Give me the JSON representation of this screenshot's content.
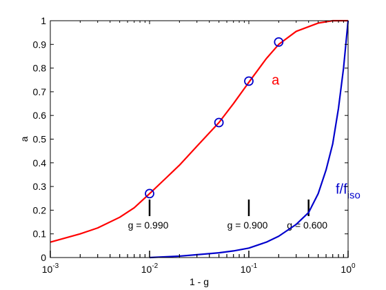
{
  "chart_data": {
    "type": "line",
    "xlabel": "1 - g",
    "ylabel": "a",
    "xscale": "log",
    "xlim": [
      0.001,
      1
    ],
    "ylim": [
      0,
      1
    ],
    "xticks": [
      {
        "base": "10",
        "exp": "-3",
        "value": 0.001
      },
      {
        "base": "10",
        "exp": "-2",
        "value": 0.01
      },
      {
        "base": "10",
        "exp": "-1",
        "value": 0.1
      },
      {
        "base": "10",
        "exp": "0",
        "value": 1
      }
    ],
    "yticks": [
      {
        "label": "0",
        "value": 0
      },
      {
        "label": "0.1",
        "value": 0.1
      },
      {
        "label": "0.2",
        "value": 0.2
      },
      {
        "label": "0.3",
        "value": 0.3
      },
      {
        "label": "0.4",
        "value": 0.4
      },
      {
        "label": "0.5",
        "value": 0.5
      },
      {
        "label": "0.6",
        "value": 0.6
      },
      {
        "label": "0.7",
        "value": 0.7
      },
      {
        "label": "0.8",
        "value": 0.8
      },
      {
        "label": "0.9",
        "value": 0.9
      },
      {
        "label": "1",
        "value": 1
      }
    ],
    "grid": false,
    "series": [
      {
        "name": "a",
        "color": "#ff0000",
        "style": "line",
        "x": [
          0.001,
          0.002,
          0.003,
          0.005,
          0.007,
          0.01,
          0.015,
          0.02,
          0.03,
          0.05,
          0.07,
          0.1,
          0.15,
          0.2,
          0.3,
          0.5,
          0.7,
          1.0
        ],
        "y": [
          0.065,
          0.1,
          0.125,
          0.17,
          0.21,
          0.27,
          0.34,
          0.39,
          0.47,
          0.57,
          0.65,
          0.74,
          0.84,
          0.9,
          0.955,
          0.99,
          1.0,
          1.0
        ]
      },
      {
        "name": "a (data)",
        "color": "#0000cc",
        "style": "marker",
        "x": [
          0.01,
          0.05,
          0.1,
          0.2
        ],
        "y": [
          0.27,
          0.57,
          0.745,
          0.91
        ]
      },
      {
        "name": "f/f_iso",
        "color": "#0000cc",
        "style": "line",
        "x": [
          0.01,
          0.02,
          0.03,
          0.05,
          0.07,
          0.1,
          0.15,
          0.2,
          0.3,
          0.4,
          0.5,
          0.6,
          0.7,
          0.8,
          0.9,
          1.0
        ],
        "y": [
          0.0,
          0.006,
          0.012,
          0.02,
          0.028,
          0.04,
          0.065,
          0.09,
          0.14,
          0.19,
          0.27,
          0.37,
          0.48,
          0.63,
          0.8,
          1.0
        ]
      }
    ],
    "series_labels": [
      {
        "text": "a",
        "color": "#ff0000",
        "x": 0.17,
        "y": 0.73
      },
      {
        "base": "f/f",
        "sub": "iso",
        "color": "#0000cc",
        "x": 0.75,
        "y": 0.27
      }
    ],
    "g_markers": [
      {
        "label": "g = 0.990",
        "x": 0.01,
        "y_top": 0.245,
        "y_bottom": 0.175
      },
      {
        "label": "g = 0.900",
        "x": 0.1,
        "y_top": 0.245,
        "y_bottom": 0.175
      },
      {
        "label": "g = 0.600",
        "x": 0.4,
        "y_top": 0.245,
        "y_bottom": 0.175
      }
    ]
  }
}
